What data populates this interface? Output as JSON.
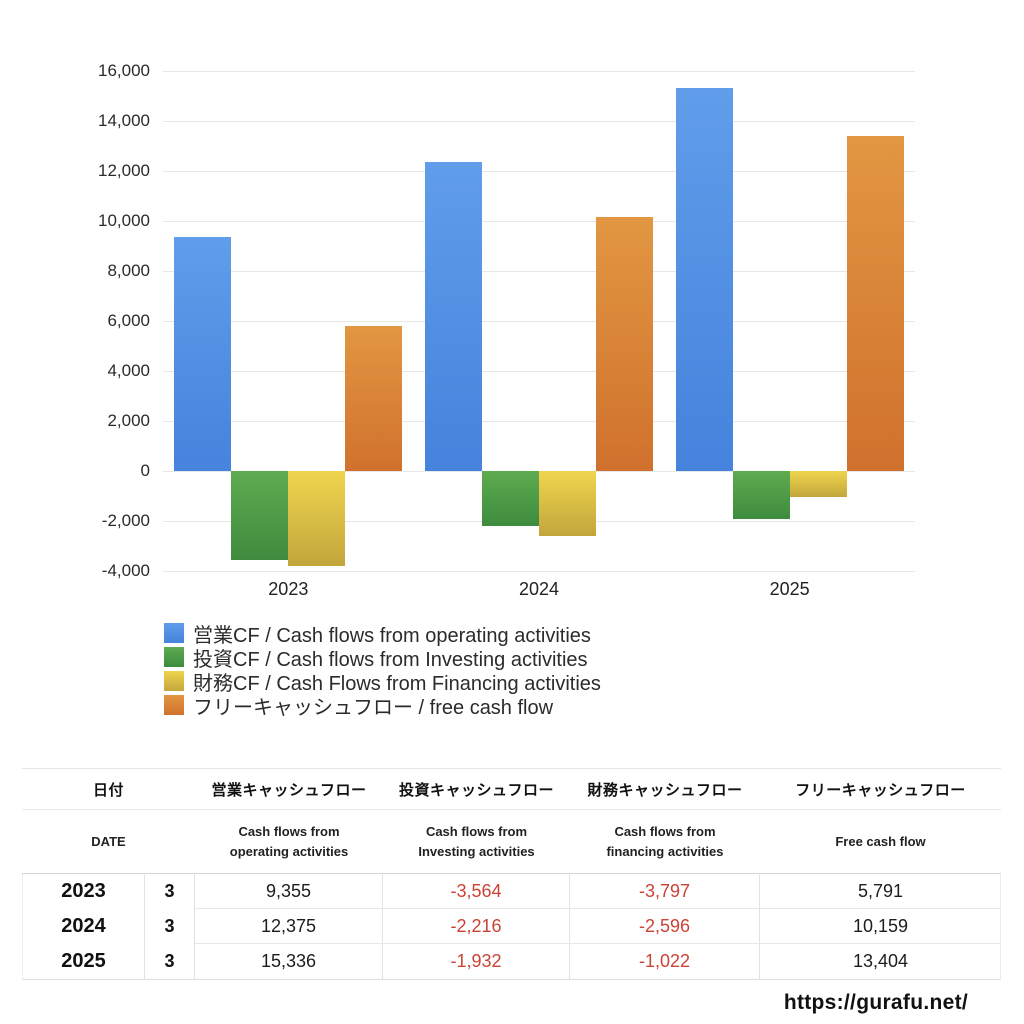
{
  "page": {
    "url_watermark": "https://gurafu.net/",
    "background": "#ffffff"
  },
  "chart_data": {
    "type": "bar",
    "title": "",
    "xlabel": "",
    "ylabel": "",
    "categories": [
      "2023",
      "2024",
      "2025"
    ],
    "series": [
      {
        "name": "営業CF / Cash flows from operating activities",
        "color_top": "#609DEA",
        "color_bottom": "#4583DD",
        "values": [
          9355,
          12375,
          15336
        ]
      },
      {
        "name": "投資CF / Cash flows from Investing activities",
        "color_top": "#5EAB50",
        "color_bottom": "#3E8B3E",
        "values": [
          -3564,
          -2216,
          -1932
        ]
      },
      {
        "name": "財務CF / Cash Flows from Financing activities",
        "color_top": "#EFD54E",
        "color_bottom": "#C2A63C",
        "values": [
          -3797,
          -2596,
          -1022
        ]
      },
      {
        "name": "フリーキャッシュフロー / free cash flow",
        "color_top": "#E29742",
        "color_bottom": "#D0712D",
        "values": [
          5791,
          10159,
          13404
        ]
      }
    ],
    "ylim": [
      -4000,
      16000
    ],
    "ytick_step": 2000,
    "ytick_labels": [
      "16,000",
      "14,000",
      "12,000",
      "10,000",
      "8,000",
      "6,000",
      "4,000",
      "2,000",
      "0",
      "-2,000",
      "-4,000"
    ],
    "grid": true,
    "legend_position": "bottom-left",
    "gridline_color": "#e7e7e7"
  },
  "table": {
    "header_jp": [
      "日付",
      "営業キャッシュフロー",
      "投資キャッシュフロー",
      "財務キャッシュフロー",
      "フリーキャッシュフロー"
    ],
    "header_en": [
      "DATE",
      "Cash flows from operating activities",
      "Cash flows from Investing activities",
      "Cash flows from financing activities",
      "Free cash flow"
    ],
    "rows": [
      {
        "year": "2023",
        "month": "3",
        "values": [
          "9,355",
          "-3,564",
          "-3,797",
          "5,791"
        ]
      },
      {
        "year": "2024",
        "month": "3",
        "values": [
          "12,375",
          "-2,216",
          "-2,596",
          "10,159"
        ]
      },
      {
        "year": "2025",
        "month": "3",
        "values": [
          "15,336",
          "-1,932",
          "-1,022",
          "13,404"
        ]
      }
    ],
    "negative_color": "#CB4335",
    "positive_color": "#1d1d1d"
  }
}
